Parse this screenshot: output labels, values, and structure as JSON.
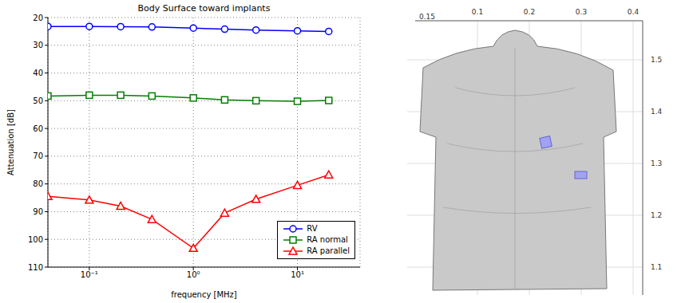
{
  "chart_data": {
    "type": "line",
    "title": "Body Surface toward implants",
    "x_label": "frequency [MHz]",
    "y_label": "Attenuation [dB]",
    "x": [
      0.04,
      0.1,
      0.2,
      0.4,
      1,
      2,
      4,
      10,
      20
    ],
    "series": [
      {
        "name": "RV",
        "color": "#0000ff",
        "marker": "circle",
        "values": [
          23.2,
          23.2,
          23.3,
          23.4,
          23.8,
          24.2,
          24.5,
          24.8,
          25.0
        ]
      },
      {
        "name": "RA normal",
        "color": "#008000",
        "marker": "square",
        "values": [
          48.3,
          48.0,
          48.0,
          48.3,
          49.0,
          49.7,
          50.0,
          50.2,
          49.9
        ]
      },
      {
        "name": "RA parallel",
        "color": "#ff0000",
        "marker": "triangle",
        "values": [
          84.5,
          85.8,
          88.0,
          92.8,
          103.2,
          90.5,
          85.5,
          80.5,
          76.7
        ]
      }
    ],
    "xlim": [
      0.04,
      40
    ],
    "xticks": [
      {
        "value": 0.1,
        "label": "10⁻¹"
      },
      {
        "value": 1,
        "label": "10⁰"
      },
      {
        "value": 10,
        "label": "10¹"
      }
    ],
    "ylim": [
      110,
      20
    ],
    "yticks": [
      20,
      30,
      40,
      50,
      60,
      70,
      80,
      90,
      100,
      110
    ],
    "log": "x",
    "grid": true,
    "legend": "lower right"
  },
  "render3d": {
    "xticks": [
      0.1,
      0.2,
      0.3,
      0.4
    ],
    "depth_ticks": [
      0.15
    ],
    "zticks": [
      1.5,
      1.4,
      1.3,
      1.2,
      1.1
    ]
  }
}
